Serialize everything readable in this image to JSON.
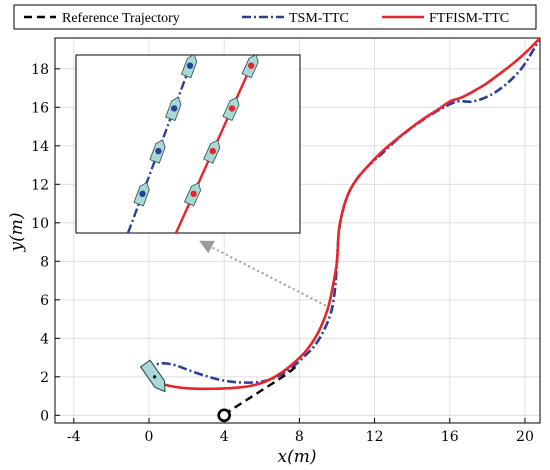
{
  "chart_data": {
    "type": "line",
    "title": "",
    "xlabel": "x(m)",
    "ylabel": "y(m)",
    "xlim": [
      -5,
      20.8
    ],
    "ylim": [
      -0.4,
      19.6
    ],
    "xticks": [
      -4,
      0,
      4,
      8,
      12,
      16,
      20
    ],
    "yticks": [
      0,
      2,
      4,
      6,
      8,
      10,
      12,
      14,
      16,
      18
    ],
    "grid": true,
    "legend_position": "top",
    "series": [
      {
        "name": "Reference Trajectory",
        "color": "#000000",
        "style": "dashed",
        "x": [
          4.0,
          4.4,
          5.2,
          6.0,
          6.8,
          7.4,
          7.9
        ],
        "y": [
          0.0,
          0.3,
          0.8,
          1.3,
          1.8,
          2.2,
          2.6
        ]
      },
      {
        "name": "TSM-TTC",
        "color": "#2b3f9a",
        "style": "dashdot",
        "x": [
          0.0,
          0.3,
          0.8,
          1.4,
          2.1,
          3.0,
          4.0,
          5.0,
          6.0,
          6.8,
          7.5,
          8.2,
          8.8,
          9.3,
          9.7,
          9.9,
          10.0,
          10.1,
          10.3,
          10.6,
          11.0,
          11.6,
          12.4,
          13.4,
          14.5,
          15.5,
          16.4,
          17.2,
          18.1,
          19.0,
          19.8,
          20.4,
          20.8
        ],
        "y": [
          2.2,
          2.6,
          2.7,
          2.6,
          2.35,
          2.05,
          1.8,
          1.7,
          1.75,
          2.0,
          2.4,
          3.0,
          3.6,
          4.4,
          5.4,
          6.6,
          8.0,
          9.5,
          10.6,
          11.5,
          12.2,
          12.9,
          13.6,
          14.5,
          15.3,
          15.9,
          16.3,
          16.3,
          16.6,
          17.2,
          18.0,
          18.9,
          19.6
        ]
      },
      {
        "name": "FTFISM-TTC",
        "color": "#e8242c",
        "style": "solid",
        "x": [
          0.3,
          1.0,
          1.8,
          2.6,
          3.5,
          4.5,
          5.5,
          6.3,
          7.1,
          7.8,
          8.4,
          9.0,
          9.5,
          9.8,
          10.0,
          10.1,
          10.3,
          10.6,
          11.0,
          11.6,
          12.4,
          13.5,
          14.6,
          15.4,
          16.0,
          16.6,
          17.2,
          17.9,
          18.6,
          19.4,
          20.1,
          20.8
        ],
        "y": [
          1.75,
          1.55,
          1.42,
          1.38,
          1.38,
          1.42,
          1.55,
          1.8,
          2.25,
          2.8,
          3.4,
          4.3,
          5.5,
          6.8,
          8.0,
          9.6,
          10.6,
          11.5,
          12.2,
          12.9,
          13.7,
          14.6,
          15.4,
          15.9,
          16.3,
          16.5,
          16.8,
          17.2,
          17.7,
          18.3,
          18.9,
          19.6
        ]
      }
    ],
    "start_marker": {
      "x": 4.0,
      "y": 0.0,
      "shape": "circle"
    },
    "ship_marker": {
      "x": 0.3,
      "y": 2.0,
      "heading_deg": 125,
      "color": "#a9d9d7"
    },
    "inset": {
      "description_arrow": true,
      "arrow_from": [
        9.4,
        5.7
      ],
      "arrow_to": [
        2.8,
        9.0
      ],
      "arrow_color": "#9a9a9a",
      "tracks": [
        {
          "color": "#2b3f9a",
          "style": "dashdot"
        },
        {
          "color": "#e8242c",
          "style": "solid"
        }
      ]
    }
  }
}
